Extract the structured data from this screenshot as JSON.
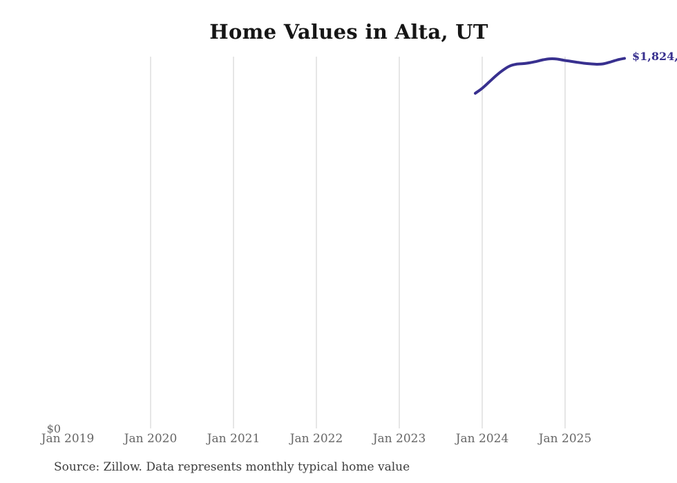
{
  "title": "Home Values in Alta, UT",
  "latest_value_label": "$1,824,",
  "y_axis": {
    "zero_label": "$0"
  },
  "x_axis": {
    "ticks": [
      "Jan 2019",
      "Jan 2020",
      "Jan 2021",
      "Jan 2022",
      "Jan 2023",
      "Jan 2024",
      "Jan 2025"
    ]
  },
  "source_note": "Source: Zillow. Data represents monthly typical home value",
  "colors": {
    "line": "#38308f",
    "value_label": "#38308f",
    "gridline": "#cccccc",
    "axis_label": "#666666",
    "title": "#161616",
    "source": "#3d3d3d",
    "background": "#ffffff"
  },
  "chart_data": {
    "type": "line",
    "title": "Home Values in Alta, UT",
    "series_name": "Monthly typical home value (USD)",
    "x": [
      "Nov 2023",
      "Dec 2023",
      "Jan 2024",
      "Feb 2024",
      "Mar 2024",
      "Apr 2024",
      "May 2024",
      "Jun 2024",
      "Jul 2024",
      "Aug 2024",
      "Sep 2024",
      "Oct 2024",
      "Nov 2024",
      "Dec 2024",
      "Jan 2025",
      "Feb 2025",
      "Mar 2025",
      "Apr 2025",
      "May 2025",
      "Jun 2025",
      "Jul 2025",
      "Aug 2025",
      "Sep 2025"
    ],
    "values": [
      1652000,
      1676000,
      1706000,
      1737000,
      1764000,
      1785000,
      1795000,
      1798000,
      1802000,
      1809000,
      1817000,
      1822000,
      1821000,
      1815000,
      1810000,
      1805000,
      1800000,
      1797000,
      1795000,
      1798000,
      1807000,
      1817000,
      1824000
    ],
    "xlabel": "",
    "ylabel": "",
    "x_axis_ticks_shown": [
      "Jan 2019",
      "Jan 2020",
      "Jan 2021",
      "Jan 2022",
      "Jan 2023",
      "Jan 2024",
      "Jan 2025"
    ],
    "ylim": [
      0,
      1835000
    ],
    "grid": "vertical yearly gridlines only, no gridline at Jan 2019",
    "legend": "none",
    "last_point_label": "$1,824,"
  }
}
